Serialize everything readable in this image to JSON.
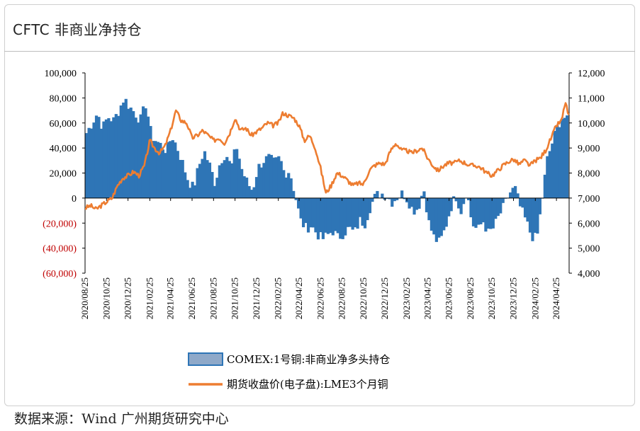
{
  "header": {
    "title": "CFTC 非商业净持仓"
  },
  "source": "数据来源：Wind  广州期货研究中心",
  "colors": {
    "bar": "#2e75b6",
    "bar_legend": "#8fa9c9",
    "line": "#ed7d31",
    "axis": "#000000",
    "negative_tick": "#c00000"
  },
  "chart_data": {
    "type": "bar",
    "title": "CFTC 非商业净持仓",
    "xlabel": "",
    "ylabel": "",
    "y_left": {
      "min": -60000,
      "max": 100000,
      "step": 20000,
      "tick_labels": [
        "(60,000)",
        "(40,000)",
        "(20,000)",
        "0",
        "20,000",
        "40,000",
        "60,000",
        "80,000",
        "100,000"
      ]
    },
    "y_right": {
      "min": 4000,
      "max": 12000,
      "step": 1000,
      "tick_labels": [
        "4,000",
        "5,000",
        "6,000",
        "7,000",
        "8,000",
        "9,000",
        "10,000",
        "11,000",
        "12,000"
      ]
    },
    "x_start": "2020-08-25",
    "x_end": "2024-05-31",
    "x_tick_labels": [
      "2020/08/25",
      "2020/10/25",
      "2020/12/25",
      "2021/02/25",
      "2021/04/25",
      "2021/06/25",
      "2021/08/25",
      "2021/10/25",
      "2021/12/25",
      "2022/02/25",
      "2022/04/25",
      "2022/06/25",
      "2022/08/25",
      "2022/10/25",
      "2022/12/25",
      "2023/02/25",
      "2023/04/25",
      "2023/06/25",
      "2023/08/25",
      "2023/10/25",
      "2023/12/25",
      "2024/02/25",
      "2024/04/25"
    ],
    "series": [
      {
        "name": "COMEX:1号铜:非商业净多头持仓",
        "type": "bar",
        "axis": "left",
        "points": [
          [
            "2020-08-25",
            52000
          ],
          [
            "2020-09-10",
            60000
          ],
          [
            "2020-09-25",
            68000
          ],
          [
            "2020-10-10",
            56000
          ],
          [
            "2020-10-25",
            65000
          ],
          [
            "2020-11-10",
            62000
          ],
          [
            "2020-11-25",
            70000
          ],
          [
            "2020-12-10",
            80000
          ],
          [
            "2020-12-25",
            73000
          ],
          [
            "2021-01-10",
            68000
          ],
          [
            "2021-01-25",
            62000
          ],
          [
            "2021-02-10",
            76000
          ],
          [
            "2021-02-25",
            50000
          ],
          [
            "2021-03-10",
            46000
          ],
          [
            "2021-03-25",
            42000
          ],
          [
            "2021-04-10",
            38000
          ],
          [
            "2021-04-25",
            50000
          ],
          [
            "2021-05-10",
            40000
          ],
          [
            "2021-05-25",
            28000
          ],
          [
            "2021-06-10",
            14000
          ],
          [
            "2021-06-25",
            8000
          ],
          [
            "2021-07-10",
            25000
          ],
          [
            "2021-07-25",
            38000
          ],
          [
            "2021-08-10",
            26000
          ],
          [
            "2021-08-25",
            12000
          ],
          [
            "2021-09-10",
            30000
          ],
          [
            "2021-09-25",
            36000
          ],
          [
            "2021-10-10",
            24000
          ],
          [
            "2021-10-25",
            42000
          ],
          [
            "2021-11-10",
            22000
          ],
          [
            "2021-11-25",
            12000
          ],
          [
            "2021-12-10",
            6000
          ],
          [
            "2021-12-25",
            24000
          ],
          [
            "2022-01-10",
            30000
          ],
          [
            "2022-01-25",
            32000
          ],
          [
            "2022-02-10",
            28000
          ],
          [
            "2022-02-25",
            32000
          ],
          [
            "2022-03-10",
            20000
          ],
          [
            "2022-03-25",
            22000
          ],
          [
            "2022-04-10",
            2000
          ],
          [
            "2022-04-25",
            -18000
          ],
          [
            "2022-05-10",
            -24000
          ],
          [
            "2022-05-25",
            -22000
          ],
          [
            "2022-06-10",
            -28000
          ],
          [
            "2022-06-25",
            -33000
          ],
          [
            "2022-07-10",
            -30000
          ],
          [
            "2022-07-25",
            -26000
          ],
          [
            "2022-08-10",
            -32000
          ],
          [
            "2022-08-25",
            -28000
          ],
          [
            "2022-09-10",
            -24000
          ],
          [
            "2022-09-25",
            -28000
          ],
          [
            "2022-10-10",
            -18000
          ],
          [
            "2022-10-25",
            -20000
          ],
          [
            "2022-11-10",
            -6000
          ],
          [
            "2022-11-25",
            2000
          ],
          [
            "2022-12-10",
            4000
          ],
          [
            "2022-12-25",
            2000
          ],
          [
            "2023-01-10",
            -3000
          ],
          [
            "2023-01-25",
            1000
          ],
          [
            "2023-02-10",
            4000
          ],
          [
            "2023-02-25",
            -2000
          ],
          [
            "2023-03-10",
            -10000
          ],
          [
            "2023-03-25",
            -8000
          ],
          [
            "2023-04-10",
            8000
          ],
          [
            "2023-04-25",
            -20000
          ],
          [
            "2023-05-10",
            -32000
          ],
          [
            "2023-05-25",
            -36000
          ],
          [
            "2023-06-10",
            -24000
          ],
          [
            "2023-06-25",
            -8000
          ],
          [
            "2023-07-10",
            2000
          ],
          [
            "2023-07-25",
            -10000
          ],
          [
            "2023-08-10",
            6000
          ],
          [
            "2023-08-25",
            -20000
          ],
          [
            "2023-09-10",
            -26000
          ],
          [
            "2023-09-25",
            -18000
          ],
          [
            "2023-10-10",
            -28000
          ],
          [
            "2023-10-25",
            -24000
          ],
          [
            "2023-11-10",
            -14000
          ],
          [
            "2023-11-25",
            -6000
          ],
          [
            "2023-12-10",
            4000
          ],
          [
            "2023-12-25",
            8000
          ],
          [
            "2024-01-10",
            -8000
          ],
          [
            "2024-01-25",
            -18000
          ],
          [
            "2024-02-10",
            -30000
          ],
          [
            "2024-02-25",
            -33000
          ],
          [
            "2024-03-10",
            -4000
          ],
          [
            "2024-03-25",
            30000
          ],
          [
            "2024-04-10",
            45000
          ],
          [
            "2024-04-25",
            58000
          ],
          [
            "2024-05-10",
            66000
          ],
          [
            "2024-05-25",
            60000
          ]
        ]
      },
      {
        "name": "期货收盘价(电子盘):LME3个月铜",
        "type": "line",
        "axis": "right",
        "points": [
          [
            "2020-08-25",
            6600
          ],
          [
            "2020-09-10",
            6700
          ],
          [
            "2020-09-25",
            6550
          ],
          [
            "2020-10-10",
            6700
          ],
          [
            "2020-10-25",
            6850
          ],
          [
            "2020-11-10",
            7000
          ],
          [
            "2020-11-25",
            7500
          ],
          [
            "2020-12-10",
            7800
          ],
          [
            "2020-12-25",
            7900
          ],
          [
            "2021-01-10",
            8050
          ],
          [
            "2021-01-25",
            7900
          ],
          [
            "2021-02-10",
            8300
          ],
          [
            "2021-02-25",
            9300
          ],
          [
            "2021-03-10",
            9000
          ],
          [
            "2021-03-25",
            8800
          ],
          [
            "2021-04-10",
            9100
          ],
          [
            "2021-04-25",
            9700
          ],
          [
            "2021-05-10",
            10500
          ],
          [
            "2021-05-25",
            10100
          ],
          [
            "2021-06-10",
            10000
          ],
          [
            "2021-06-25",
            9400
          ],
          [
            "2021-07-10",
            9500
          ],
          [
            "2021-07-25",
            9700
          ],
          [
            "2021-08-10",
            9500
          ],
          [
            "2021-08-25",
            9300
          ],
          [
            "2021-09-10",
            9400
          ],
          [
            "2021-09-25",
            9200
          ],
          [
            "2021-10-10",
            9600
          ],
          [
            "2021-10-25",
            10200
          ],
          [
            "2021-11-10",
            9700
          ],
          [
            "2021-11-25",
            9800
          ],
          [
            "2021-12-10",
            9500
          ],
          [
            "2021-12-25",
            9650
          ],
          [
            "2022-01-10",
            9800
          ],
          [
            "2022-01-25",
            10000
          ],
          [
            "2022-02-10",
            9900
          ],
          [
            "2022-02-25",
            10000
          ],
          [
            "2022-03-10",
            10400
          ],
          [
            "2022-03-25",
            10300
          ],
          [
            "2022-04-10",
            10200
          ],
          [
            "2022-04-25",
            9900
          ],
          [
            "2022-05-10",
            9300
          ],
          [
            "2022-05-25",
            9500
          ],
          [
            "2022-06-10",
            9000
          ],
          [
            "2022-06-25",
            8200
          ],
          [
            "2022-07-10",
            7200
          ],
          [
            "2022-07-25",
            7500
          ],
          [
            "2022-08-10",
            8000
          ],
          [
            "2022-08-25",
            7900
          ],
          [
            "2022-09-10",
            7700
          ],
          [
            "2022-09-25",
            7500
          ],
          [
            "2022-10-10",
            7600
          ],
          [
            "2022-10-25",
            7550
          ],
          [
            "2022-11-10",
            8100
          ],
          [
            "2022-11-25",
            8300
          ],
          [
            "2022-12-10",
            8400
          ],
          [
            "2022-12-25",
            8350
          ],
          [
            "2023-01-10",
            8900
          ],
          [
            "2023-01-25",
            9200
          ],
          [
            "2023-02-10",
            8900
          ],
          [
            "2023-02-25",
            8900
          ],
          [
            "2023-03-10",
            8800
          ],
          [
            "2023-03-25",
            8900
          ],
          [
            "2023-04-10",
            9000
          ],
          [
            "2023-04-25",
            8600
          ],
          [
            "2023-05-10",
            8300
          ],
          [
            "2023-05-25",
            8100
          ],
          [
            "2023-06-10",
            8300
          ],
          [
            "2023-06-25",
            8400
          ],
          [
            "2023-07-10",
            8400
          ],
          [
            "2023-07-25",
            8500
          ],
          [
            "2023-08-10",
            8400
          ],
          [
            "2023-08-25",
            8300
          ],
          [
            "2023-09-10",
            8300
          ],
          [
            "2023-09-25",
            8200
          ],
          [
            "2023-10-10",
            8000
          ],
          [
            "2023-10-25",
            7900
          ],
          [
            "2023-11-10",
            8100
          ],
          [
            "2023-11-25",
            8300
          ],
          [
            "2023-12-10",
            8450
          ],
          [
            "2023-12-25",
            8550
          ],
          [
            "2024-01-10",
            8350
          ],
          [
            "2024-01-25",
            8500
          ],
          [
            "2024-02-10",
            8300
          ],
          [
            "2024-02-25",
            8500
          ],
          [
            "2024-03-10",
            8600
          ],
          [
            "2024-03-25",
            8900
          ],
          [
            "2024-04-10",
            9400
          ],
          [
            "2024-04-25",
            9900
          ],
          [
            "2024-05-10",
            10100
          ],
          [
            "2024-05-20",
            10850
          ],
          [
            "2024-05-31",
            10200
          ]
        ]
      }
    ],
    "legend": {
      "position": "bottom"
    },
    "grid": false
  }
}
